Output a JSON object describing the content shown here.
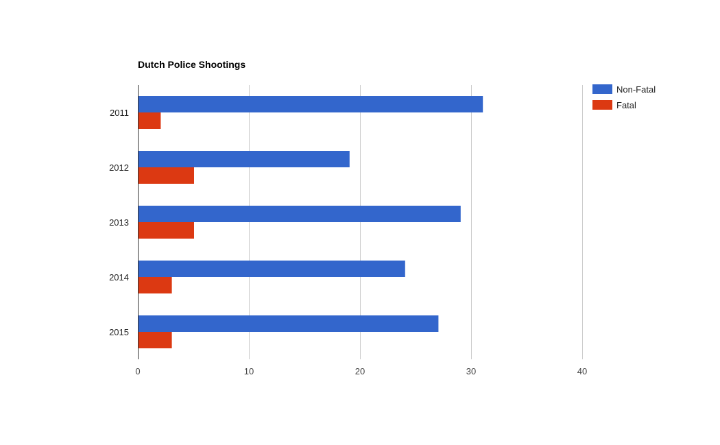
{
  "chart_data": {
    "type": "bar",
    "orientation": "horizontal",
    "title": "Dutch Police Shootings",
    "categories": [
      "2011",
      "2012",
      "2013",
      "2014",
      "2015"
    ],
    "series": [
      {
        "name": "Non-Fatal",
        "color": "#3366cc",
        "values": [
          31,
          19,
          29,
          24,
          27
        ]
      },
      {
        "name": "Fatal",
        "color": "#dc3912",
        "values": [
          2,
          5,
          5,
          3,
          3
        ]
      }
    ],
    "xlim": [
      0,
      40
    ],
    "xticks": [
      "0",
      "10",
      "20",
      "30",
      "40"
    ],
    "grid": true,
    "legend_position": "right"
  }
}
